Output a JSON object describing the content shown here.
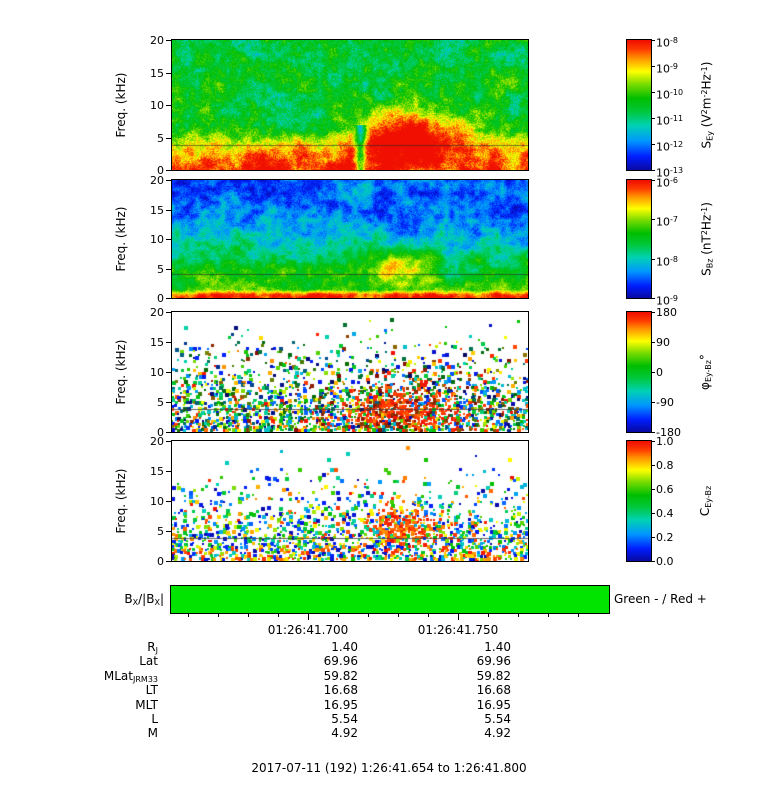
{
  "chart_data": {
    "type": "heatmap",
    "description": "Four stacked burst-mode plasma-wave spectrogram panels (0-20 kHz) versus time with rainbow colorbars, a BX magnetic-field sign bar, time tick labels, and spacecraft ephemeris rows.",
    "x_axis": {
      "date": "2017-07-11",
      "day_of_year": "192",
      "start": "1:26:41.654",
      "end": "1:26:41.800",
      "tick_labels": [
        "01:26:41.700",
        "01:26:41.750"
      ]
    },
    "panels": [
      {
        "id": "s-ey",
        "quantity": "Electric field spectral density",
        "ylabel": "Freq. (kHz)",
        "ylim": [
          0,
          20
        ],
        "yticks": [
          0,
          5,
          10,
          15,
          20
        ],
        "colorbar": {
          "scale": "log",
          "label_tokens": [
            {
              "t": "S"
            },
            {
              "t": "Ey",
              "s": "sub"
            },
            {
              "t": " (V"
            },
            {
              "t": "2",
              "s": "sup"
            },
            {
              "t": "m"
            },
            {
              "t": "-2",
              "s": "sup"
            },
            {
              "t": "Hz"
            },
            {
              "t": "-1",
              "s": "sup"
            },
            {
              "t": ")"
            }
          ],
          "ticks": [
            {
              "exp": "-8"
            },
            {
              "exp": "-9"
            },
            {
              "exp": "-10"
            },
            {
              "exp": "-11"
            },
            {
              "exp": "-12"
            },
            {
              "exp": "-13"
            }
          ]
        },
        "content_notes": "Intense broadband emission (red, ~1e-8) below ~4 kHz across whole interval; mottled green/cyan background (~1e-11) 5-20 kHz; strong red enhancement 4-9 kHz near 01:26:41.75; thin overplotted line near 3.8 kHz.",
        "texture": {
          "style": "filled",
          "base_profile": [
            [
              0,
              0.97
            ],
            [
              0.08,
              0.93
            ],
            [
              0.15,
              0.85
            ],
            [
              0.22,
              0.72
            ],
            [
              0.3,
              0.55
            ],
            [
              0.4,
              0.5
            ],
            [
              1,
              0.47
            ]
          ],
          "noise": 0.11,
          "fine": 0.16,
          "blob": {
            "u": 0.67,
            "f": 0.3,
            "su": 0.1,
            "sf": 0.13,
            "amp": 0.55
          },
          "streak": {
            "u": 0.53,
            "w": 0.01,
            "fmax": 0.35,
            "amp": 0.4
          },
          "line_f": 0.19
        }
      },
      {
        "id": "s-bz",
        "quantity": "Magnetic field spectral density",
        "ylabel": "Freq. (kHz)",
        "ylim": [
          0,
          20
        ],
        "yticks": [
          0,
          5,
          10,
          15,
          20
        ],
        "colorbar": {
          "scale": "log",
          "label_tokens": [
            {
              "t": "S"
            },
            {
              "t": "Bz",
              "s": "sub"
            },
            {
              "t": " (nT"
            },
            {
              "t": "2",
              "s": "sup"
            },
            {
              "t": "Hz"
            },
            {
              "t": "-1",
              "s": "sup"
            },
            {
              "t": ")"
            }
          ],
          "ticks": [
            {
              "exp": "-6"
            },
            {
              "exp": "-7"
            },
            {
              "exp": "-8"
            },
            {
              "exp": "-9"
            }
          ]
        },
        "content_notes": "Red band (~1e-6) at lowest frequencies; green mottled background up to ~8 kHz; dark blue background above ~10 kHz; yellow/orange enhancement near 5 kHz around 01:26:41.74-41.76; thin line near 4 kHz.",
        "texture": {
          "style": "filled",
          "base_profile": [
            [
              0,
              0.97
            ],
            [
              0.03,
              0.92
            ],
            [
              0.07,
              0.6
            ],
            [
              0.25,
              0.5
            ],
            [
              0.4,
              0.4
            ],
            [
              0.55,
              0.28
            ],
            [
              0.7,
              0.2
            ],
            [
              1,
              0.16
            ]
          ],
          "noise": 0.11,
          "fine": 0.12,
          "blob": {
            "u": 0.625,
            "f": 0.27,
            "su": 0.06,
            "sf": 0.09,
            "amp": 0.33
          },
          "line_f": 0.2
        }
      },
      {
        "id": "phi-ey-bz",
        "quantity": "Ey-Bz cross phase",
        "ylabel": "Freq. (kHz)",
        "ylim": [
          0,
          20
        ],
        "yticks": [
          0,
          5,
          10,
          15,
          20
        ],
        "colorbar": {
          "scale": "linear",
          "label_tokens": [
            {
              "t": "φ"
            },
            {
              "t": "Ey-Bz",
              "s": "sub"
            },
            {
              "t": "°"
            }
          ],
          "ticks": [
            {
              "text": "180"
            },
            {
              "text": "90"
            },
            {
              "text": "0"
            },
            {
              "text": "-90"
            },
            {
              "text": "-180"
            }
          ]
        },
        "content_notes": "Scattered multicolour phase speckles on white background, densest below ~7 kHz; concentration of red (±180°) values 0-7 kHz near 01:26:41.74-41.77; thin line near 3.8 kHz.",
        "texture": {
          "style": "speckle",
          "mode": "phase",
          "density": 0.85,
          "density_pow": 1.6,
          "blob": {
            "u": 0.64,
            "f": 0.2,
            "su": 0.11,
            "sf": 0.16,
            "amp": 0.5
          },
          "line_f": 0.19
        }
      },
      {
        "id": "c-ey-bz",
        "quantity": "Ey-Bz coherence",
        "ylabel": "Freq. (kHz)",
        "ylim": [
          0,
          20
        ],
        "yticks": [
          0,
          5,
          10,
          15,
          20
        ],
        "colorbar": {
          "scale": "linear",
          "label_tokens": [
            {
              "t": "C"
            },
            {
              "t": "Ey-Bz",
              "s": "sub"
            }
          ],
          "ticks": [
            {
              "text": "1.0"
            },
            {
              "text": "0.8"
            },
            {
              "text": "0.6"
            },
            {
              "text": "0.4"
            },
            {
              "text": "0.2"
            },
            {
              "text": "0.0"
            }
          ]
        },
        "content_notes": "Coherence speckles on white background, densest at low frequency; high-coherence (red, ~1.0) patch 4-8 kHz near 01:26:41.74-41.76; thin line near 3.8 kHz.",
        "texture": {
          "style": "speckle",
          "mode": "coh",
          "density": 0.8,
          "density_pow": 2.0,
          "blob": {
            "u": 0.66,
            "f": 0.3,
            "su": 0.08,
            "sf": 0.1,
            "amp": 0.6
          },
          "line_f": 0.19
        }
      }
    ],
    "bx_bar": {
      "label_tokens": [
        {
          "t": "B"
        },
        {
          "t": "X",
          "s": "sub"
        },
        {
          "t": "/|B"
        },
        {
          "t": "X",
          "s": "sub"
        },
        {
          "t": "|"
        }
      ],
      "legend": "Green - / Red +",
      "color": "#00e400",
      "state": "green (negative) across the full interval"
    },
    "ephemeris": {
      "rows": [
        {
          "label_tokens": [
            {
              "t": "R"
            },
            {
              "t": "J",
              "s": "sub"
            }
          ],
          "values": [
            "1.40",
            "1.40"
          ]
        },
        {
          "label_tokens": [
            {
              "t": "Lat"
            }
          ],
          "values": [
            "69.96",
            "69.96"
          ]
        },
        {
          "label_tokens": [
            {
              "t": "MLat"
            },
            {
              "t": "JRM33",
              "s": "sub"
            }
          ],
          "values": [
            "59.82",
            "59.82"
          ]
        },
        {
          "label_tokens": [
            {
              "t": "LT"
            }
          ],
          "values": [
            "16.68",
            "16.68"
          ]
        },
        {
          "label_tokens": [
            {
              "t": "MLT"
            }
          ],
          "values": [
            "16.95",
            "16.95"
          ]
        },
        {
          "label_tokens": [
            {
              "t": "L"
            }
          ],
          "values": [
            "5.54",
            "5.54"
          ]
        },
        {
          "label_tokens": [
            {
              "t": "M"
            }
          ],
          "values": [
            "4.92",
            "4.92"
          ]
        }
      ]
    },
    "footer": "2017-07-11 (192) 1:26:41.654 to 1:26:41.800"
  }
}
